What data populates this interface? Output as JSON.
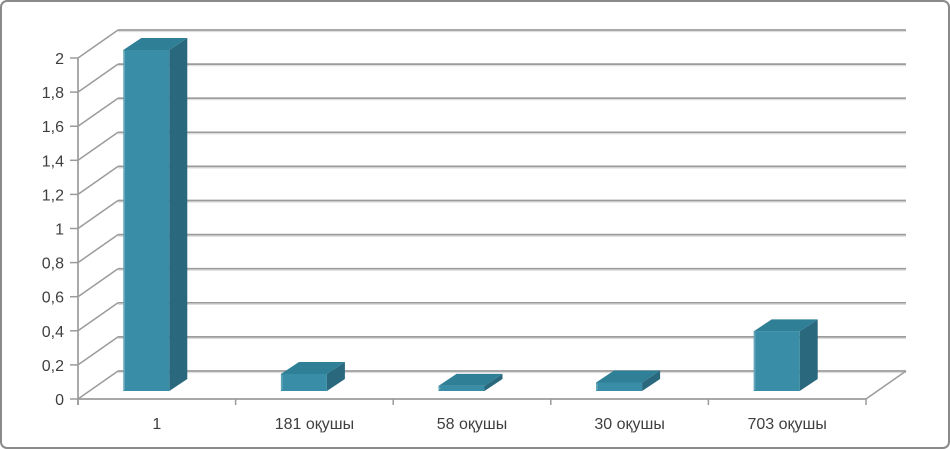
{
  "window": {
    "background": "#ffffff",
    "border_color": "#8a8a8a"
  },
  "chart_data": {
    "type": "bar",
    "style": "3d-column",
    "title": "",
    "xlabel": "",
    "ylabel": "",
    "legend": false,
    "grid": true,
    "categories": [
      "1",
      "181 оқушы",
      "58 оқушы",
      "30 оқушы",
      "703 оқушы"
    ],
    "values": [
      2,
      0.1,
      0.03,
      0.05,
      0.35
    ],
    "ylim": [
      0,
      2
    ],
    "y_step": 0.2,
    "y_tick_labels": [
      "0",
      "0,2",
      "0,4",
      "0,6",
      "0,8",
      "1",
      "1,2",
      "1,4",
      "1,6",
      "1,8",
      "2"
    ],
    "decimal_separator": ",",
    "colors": {
      "bar_front": "#3a8da6",
      "bar_top": "#2f7f97",
      "bar_side": "#29687d",
      "bar_highlight": "#ffffff",
      "gridline": "#9b9b9b",
      "gridline_light": "#d9d9d9",
      "axis": "#9b9b9b",
      "tick_label": "#3f3f3f"
    }
  }
}
